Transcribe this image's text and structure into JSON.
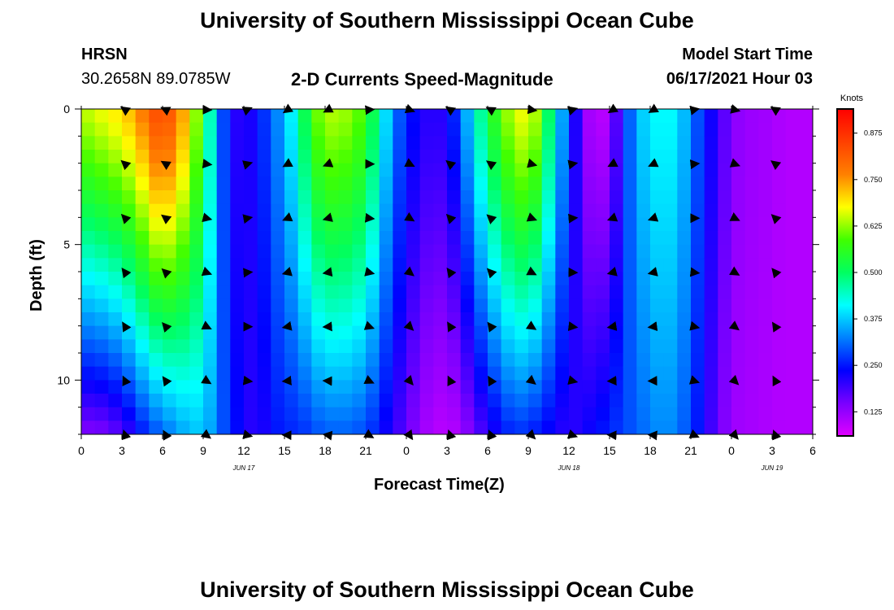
{
  "page": {
    "title_top": "University of Southern Mississippi Ocean Cube",
    "title_bottom": "University of Southern Mississippi Ocean Cube",
    "station": "HRSN",
    "coords": "30.2658N  89.0785W",
    "product": "2-D Currents Speed-Magnitude",
    "model_label": "Model Start Time",
    "model_time": "06/17/2021 Hour 03"
  },
  "chart_data": {
    "type": "heatmap",
    "title": "2-D Currents Speed-Magnitude",
    "xlabel": "Forecast Time(Z)",
    "ylabel": "Depth (ft)",
    "x_hours": [
      0,
      54
    ],
    "y_range": [
      0,
      12
    ],
    "x_ticks": [
      {
        "h": 0,
        "label": "0"
      },
      {
        "h": 3,
        "label": "3"
      },
      {
        "h": 6,
        "label": "6"
      },
      {
        "h": 9,
        "label": "9"
      },
      {
        "h": 12,
        "label": "12"
      },
      {
        "h": 15,
        "label": "15"
      },
      {
        "h": 18,
        "label": "18"
      },
      {
        "h": 21,
        "label": "21"
      },
      {
        "h": 24,
        "label": "0"
      },
      {
        "h": 27,
        "label": "3"
      },
      {
        "h": 30,
        "label": "6"
      },
      {
        "h": 33,
        "label": "9"
      },
      {
        "h": 36,
        "label": "12"
      },
      {
        "h": 39,
        "label": "15"
      },
      {
        "h": 42,
        "label": "18"
      },
      {
        "h": 45,
        "label": "21"
      },
      {
        "h": 48,
        "label": "0"
      },
      {
        "h": 51,
        "label": "3"
      },
      {
        "h": 54,
        "label": "6"
      }
    ],
    "day_labels": [
      {
        "h": 12,
        "label": "JUN 17"
      },
      {
        "h": 36,
        "label": "JUN 18"
      },
      {
        "h": 51,
        "label": "JUN 19"
      }
    ],
    "y_ticks": [
      {
        "v": 0,
        "label": "0"
      },
      {
        "v": 5,
        "label": "5"
      },
      {
        "v": 10,
        "label": "10"
      }
    ],
    "time_hours": [
      0,
      1,
      2,
      3,
      4,
      5,
      6,
      7,
      8,
      9,
      10,
      11,
      12,
      13,
      14,
      15,
      16,
      17,
      18,
      19,
      20,
      21,
      22,
      23,
      24,
      25,
      26,
      27,
      28,
      29,
      30,
      31,
      32,
      33,
      34,
      35,
      36,
      37,
      38,
      39,
      40,
      41,
      42,
      43,
      44,
      45,
      46,
      47,
      48,
      49,
      50,
      51,
      52,
      53,
      54
    ],
    "depth_levels_ft": [
      0,
      2,
      4,
      6,
      8,
      10,
      12
    ],
    "speed_profiles_knots": {
      "surface": [
        0.64,
        0.66,
        0.68,
        0.7,
        0.74,
        0.8,
        0.86,
        0.78,
        0.7,
        0.55,
        0.35,
        0.22,
        0.2,
        0.24,
        0.3,
        0.36,
        0.45,
        0.58,
        0.64,
        0.64,
        0.62,
        0.58,
        0.45,
        0.33,
        0.26,
        0.22,
        0.2,
        0.22,
        0.3,
        0.42,
        0.52,
        0.6,
        0.66,
        0.68,
        0.6,
        0.4,
        0.3,
        0.13,
        0.09,
        0.1,
        0.25,
        0.36,
        0.4,
        0.42,
        0.4,
        0.33,
        0.25,
        0.2,
        0.14,
        0.12,
        0.12,
        0.11,
        0.1,
        0.1,
        0.1
      ],
      "bottom": [
        0.14,
        0.14,
        0.15,
        0.18,
        0.22,
        0.28,
        0.3,
        0.34,
        0.36,
        0.38,
        0.32,
        0.26,
        0.22,
        0.2,
        0.24,
        0.26,
        0.26,
        0.28,
        0.3,
        0.3,
        0.3,
        0.28,
        0.25,
        0.2,
        0.17,
        0.12,
        0.1,
        0.09,
        0.11,
        0.16,
        0.2,
        0.24,
        0.27,
        0.26,
        0.24,
        0.22,
        0.2,
        0.22,
        0.24,
        0.26,
        0.28,
        0.3,
        0.32,
        0.34,
        0.32,
        0.28,
        0.22,
        0.16,
        0.12,
        0.11,
        0.11,
        0.1,
        0.1,
        0.1,
        0.1
      ]
    },
    "vector_times_h": [
      3,
      6,
      9,
      12,
      15,
      18,
      21,
      24,
      27,
      30,
      33,
      36,
      39,
      42,
      45,
      48,
      51,
      54
    ],
    "vector_depths_ft": [
      0,
      2,
      4,
      6,
      8,
      10,
      12
    ],
    "colorbar": {
      "unit": "Knots",
      "min": 0.06,
      "max": 0.94,
      "ticks": [
        "0.875",
        "0.750",
        "0.625",
        "0.500",
        "0.375",
        "0.250",
        "0.125"
      ],
      "tick_values": [
        0.875,
        0.75,
        0.625,
        0.5,
        0.375,
        0.25,
        0.125
      ],
      "colors": [
        "#e000ff",
        "#7a00ff",
        "#0000ff",
        "#0080ff",
        "#00ffff",
        "#00ff60",
        "#40ff00",
        "#ffff00",
        "#ff8000",
        "#ff4000",
        "#ff0000"
      ]
    }
  }
}
